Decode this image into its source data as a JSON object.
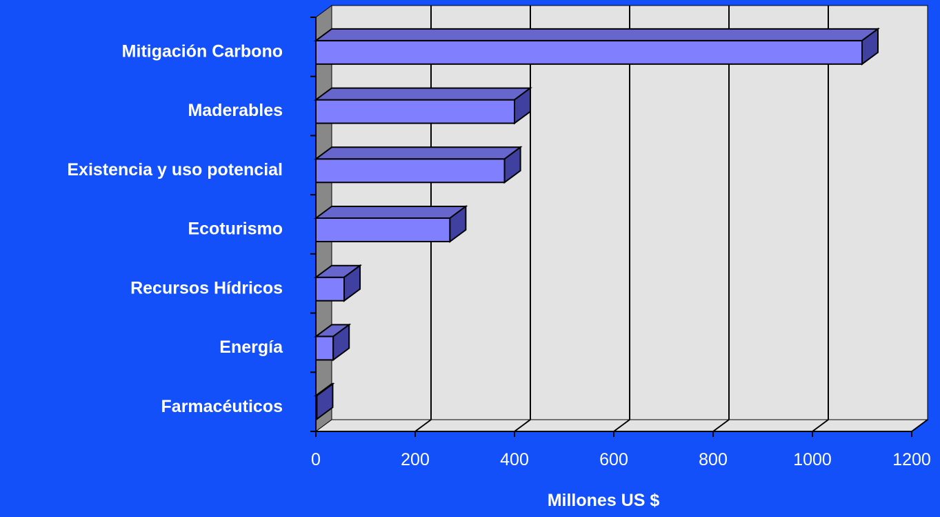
{
  "chart_data": {
    "type": "bar",
    "orientation": "horizontal",
    "style": "3d",
    "categories": [
      "Mitigación Carbono",
      "Maderables",
      "Existencia y uso potencial",
      "Ecoturismo",
      "Recursos Hídricos",
      "Energía",
      "Farmacéuticos"
    ],
    "values": [
      1100,
      400,
      380,
      270,
      57,
      35,
      2
    ],
    "xlabel": "Millones US $",
    "ylabel": "",
    "xlim": [
      0,
      1200
    ],
    "xticks": [
      "0",
      "200",
      "400",
      "600",
      "800",
      "1000",
      "1200"
    ],
    "grid": "vertical",
    "legend": "none"
  },
  "colors": {
    "background": "#1450FA",
    "plot_wall": "#E3E3E3",
    "side_wall": "#888888",
    "bar_front": "#8080FF",
    "bar_top": "#6666CC",
    "bar_side": "#4040A0",
    "gridline": "#000000"
  }
}
